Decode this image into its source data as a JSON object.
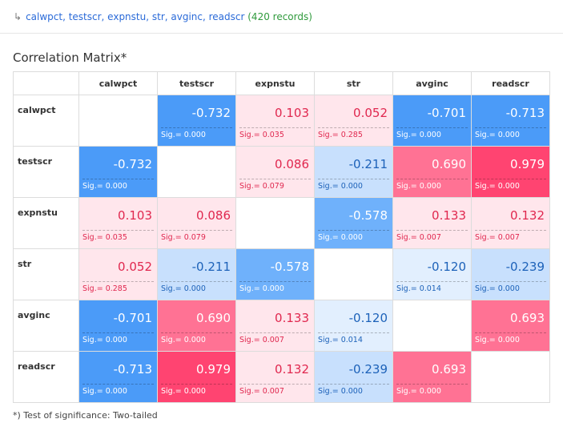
{
  "header": {
    "arrow": "↳",
    "variables": "calwpct, testscr, expnstu, str, avginc, readscr",
    "records": "(420 records)"
  },
  "title": "Correlation Matrix*",
  "footnote": "*) Test of significance: Two-tailed",
  "sig_prefix": "Sig.= ",
  "colors": {
    "strong_negative": "#4b9bf8",
    "moderate_negative": "#6fb1fb",
    "weak_negative": "#c8e0fd",
    "faint_negative": "#e2effe",
    "faint_positive": "#ffe6ec",
    "moderate_positive": "#ff7294",
    "strong_positive": "#ff4471",
    "text_dark_blue": "#1d62b9",
    "text_dark_red": "#e0284f",
    "text_light": "#ffffff",
    "diagonal": "#ffffff"
  },
  "chart_data": {
    "type": "table",
    "variables": [
      "calwpct",
      "testscr",
      "expnstu",
      "str",
      "avginc",
      "readscr"
    ],
    "coefficients": [
      [
        null,
        -0.732,
        0.103,
        0.052,
        -0.701,
        -0.713
      ],
      [
        -0.732,
        null,
        0.086,
        -0.211,
        0.69,
        0.979
      ],
      [
        0.103,
        0.086,
        null,
        -0.578,
        0.133,
        0.132
      ],
      [
        0.052,
        -0.211,
        -0.578,
        null,
        -0.12,
        -0.239
      ],
      [
        -0.701,
        0.69,
        0.133,
        -0.12,
        null,
        0.693
      ],
      [
        -0.713,
        0.979,
        0.132,
        -0.239,
        0.693,
        null
      ]
    ],
    "significance": [
      [
        null,
        "0.000",
        "0.035",
        "0.285",
        "0.000",
        "0.000"
      ],
      [
        "0.000",
        null,
        "0.079",
        "0.000",
        "0.000",
        "0.000"
      ],
      [
        "0.035",
        "0.079",
        null,
        "0.000",
        "0.007",
        "0.007"
      ],
      [
        "0.285",
        "0.000",
        "0.000",
        null,
        "0.014",
        "0.000"
      ],
      [
        "0.000",
        "0.000",
        "0.007",
        "0.014",
        null,
        "0.000"
      ],
      [
        "0.000",
        "0.000",
        "0.007",
        "0.000",
        "0.000",
        null
      ]
    ],
    "test": "Two-tailed"
  }
}
